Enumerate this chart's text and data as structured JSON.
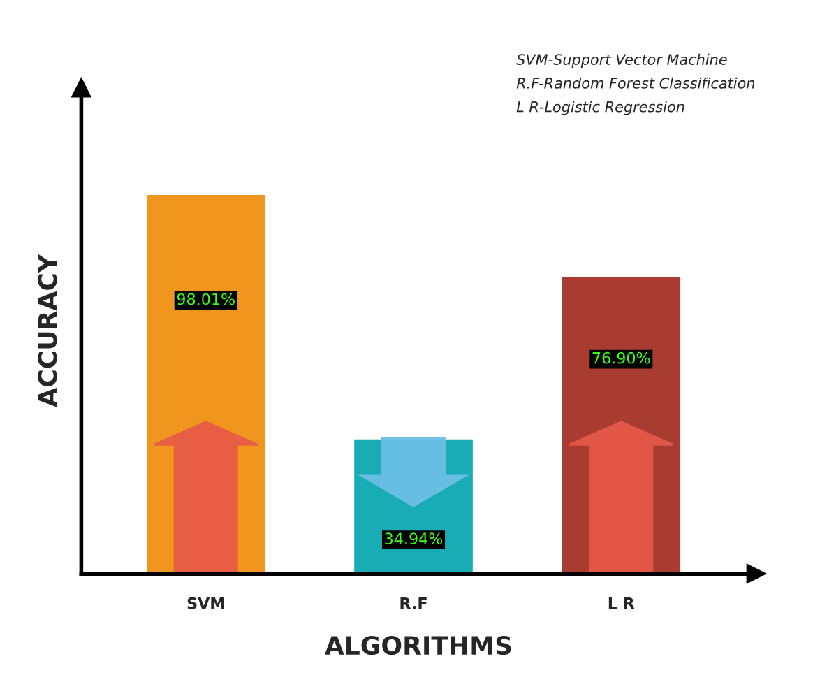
{
  "chart_data": {
    "type": "bar",
    "xlabel": "ALGORITHMS",
    "ylabel": "ACCURACY",
    "categories": [
      "SVM",
      "R.F",
      "L R"
    ],
    "values": [
      98.01,
      34.94,
      76.9
    ],
    "colors": [
      "#f0961e",
      "#1aacb4",
      "#a93c30"
    ],
    "value_labels": [
      "98.01%",
      "34.94%",
      "76.90%"
    ],
    "annotations": [
      "SVM-Support Vector Machine",
      "R.F-Random Forest Classification",
      "L R-Logistic Regression"
    ],
    "grid": false,
    "legend": false
  }
}
